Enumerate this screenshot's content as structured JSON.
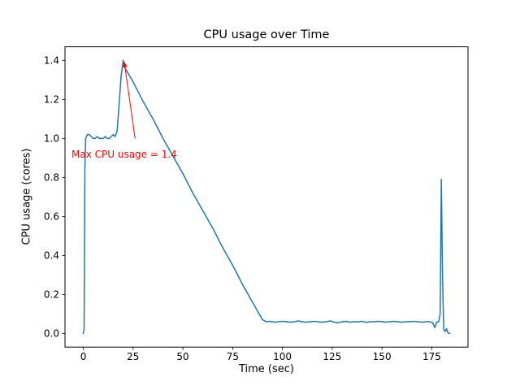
{
  "chart_data": {
    "type": "line",
    "title": "CPU usage over Time",
    "xlabel": "Time (sec)",
    "ylabel": "CPU usage (cores)",
    "xlim": [
      -9.2,
      193.2
    ],
    "ylim": [
      -0.07,
      1.47
    ],
    "xticks": [
      0,
      25,
      50,
      75,
      100,
      125,
      150,
      175
    ],
    "yticks": [
      "0.0",
      "0.2",
      "0.4",
      "0.6",
      "0.8",
      "1.0",
      "1.2",
      "1.4"
    ],
    "grid": false,
    "legend": null,
    "series": [
      {
        "name": "cpu-usage",
        "color": "#1f77b4",
        "points": [
          [
            0,
            0.0
          ],
          [
            0.4,
            0.02
          ],
          [
            0.8,
            0.85
          ],
          [
            1.2,
            1.0
          ],
          [
            2,
            1.02
          ],
          [
            3,
            1.02
          ],
          [
            4,
            1.01
          ],
          [
            5,
            1.0
          ],
          [
            6,
            1.0
          ],
          [
            7,
            1.01
          ],
          [
            8,
            1.0
          ],
          [
            9,
            1.0
          ],
          [
            10,
            1.0
          ],
          [
            11,
            1.01
          ],
          [
            12,
            1.0
          ],
          [
            13,
            1.0
          ],
          [
            14,
            1.01
          ],
          [
            15,
            1.02
          ],
          [
            16,
            1.01
          ],
          [
            17,
            1.04
          ],
          [
            18,
            1.18
          ],
          [
            19,
            1.32
          ],
          [
            20,
            1.4
          ],
          [
            20.5,
            1.38
          ],
          [
            21,
            1.36
          ],
          [
            25,
            1.29
          ],
          [
            30,
            1.19
          ],
          [
            35,
            1.1
          ],
          [
            40,
            1.0
          ],
          [
            45,
            0.91
          ],
          [
            50,
            0.82
          ],
          [
            55,
            0.72
          ],
          [
            60,
            0.63
          ],
          [
            65,
            0.54
          ],
          [
            70,
            0.44
          ],
          [
            75,
            0.35
          ],
          [
            80,
            0.25
          ],
          [
            85,
            0.16
          ],
          [
            90,
            0.07
          ],
          [
            92,
            0.06
          ],
          [
            94,
            0.062
          ],
          [
            96,
            0.058
          ],
          [
            98,
            0.06
          ],
          [
            100,
            0.062
          ],
          [
            102,
            0.06
          ],
          [
            104,
            0.058
          ],
          [
            106,
            0.06
          ],
          [
            108,
            0.064
          ],
          [
            110,
            0.06
          ],
          [
            112,
            0.058
          ],
          [
            114,
            0.06
          ],
          [
            116,
            0.062
          ],
          [
            118,
            0.06
          ],
          [
            120,
            0.058
          ],
          [
            122,
            0.06
          ],
          [
            124,
            0.064
          ],
          [
            126,
            0.058
          ],
          [
            128,
            0.055
          ],
          [
            130,
            0.06
          ],
          [
            132,
            0.062
          ],
          [
            134,
            0.058
          ],
          [
            136,
            0.06
          ],
          [
            138,
            0.06
          ],
          [
            140,
            0.062
          ],
          [
            142,
            0.057
          ],
          [
            144,
            0.06
          ],
          [
            146,
            0.06
          ],
          [
            148,
            0.062
          ],
          [
            150,
            0.06
          ],
          [
            152,
            0.058
          ],
          [
            154,
            0.06
          ],
          [
            156,
            0.062
          ],
          [
            158,
            0.06
          ],
          [
            160,
            0.058
          ],
          [
            162,
            0.06
          ],
          [
            164,
            0.06
          ],
          [
            166,
            0.062
          ],
          [
            168,
            0.06
          ],
          [
            170,
            0.058
          ],
          [
            172,
            0.06
          ],
          [
            174,
            0.06
          ],
          [
            175.5,
            0.055
          ],
          [
            176.5,
            0.03
          ],
          [
            177.5,
            0.058
          ],
          [
            178.5,
            0.06
          ],
          [
            179.2,
            0.1
          ],
          [
            179.8,
            0.79
          ],
          [
            180.4,
            0.3
          ],
          [
            181,
            0.02
          ],
          [
            181.8,
            0.01
          ],
          [
            182.4,
            0.025
          ],
          [
            183,
            0.005
          ],
          [
            184,
            0.0
          ]
        ]
      }
    ],
    "annotation": {
      "text": "Max CPU usage = 1.4",
      "color": "#ff0000",
      "xy": [
        20.6,
        1.39
      ],
      "arrow_tail": [
        26,
        1.0
      ],
      "text_pos": [
        -6,
        0.92
      ]
    }
  }
}
